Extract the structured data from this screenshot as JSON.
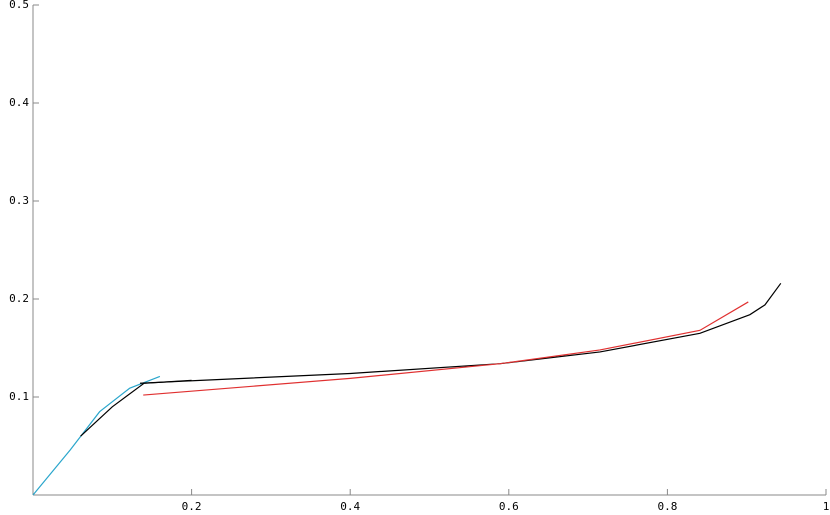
{
  "chart_data": {
    "type": "line",
    "xlim": [
      0,
      1
    ],
    "ylim": [
      0,
      0.5
    ],
    "xticks": [
      0.2,
      0.4,
      0.6,
      0.8,
      1
    ],
    "yticks": [
      0.1,
      0.2,
      0.3,
      0.4,
      0.5
    ],
    "series": [
      {
        "color": "#2aa6cc",
        "x": [
          0,
          0.047,
          0.084,
          0.122,
          0.16
        ],
        "values": [
          0,
          0.046,
          0.085,
          0.109,
          0.121
        ]
      },
      {
        "color": "#000000",
        "x": [
          0.06,
          0.1,
          0.14,
          0.2
        ],
        "values": [
          0.06,
          0.09,
          0.114,
          0.117
        ]
      },
      {
        "color": "#000000",
        "x": [
          0.135,
          0.211,
          0.4,
          0.589,
          0.715,
          0.841,
          0.904,
          0.923,
          0.943
        ],
        "values": [
          0.114,
          0.117,
          0.124,
          0.134,
          0.146,
          0.165,
          0.184,
          0.194,
          0.216
        ]
      },
      {
        "color": "#e03030",
        "x": [
          0.139,
          0.4,
          0.589,
          0.715,
          0.841,
          0.902
        ],
        "values": [
          0.102,
          0.119,
          0.134,
          0.148,
          0.168,
          0.197
        ]
      }
    ]
  }
}
